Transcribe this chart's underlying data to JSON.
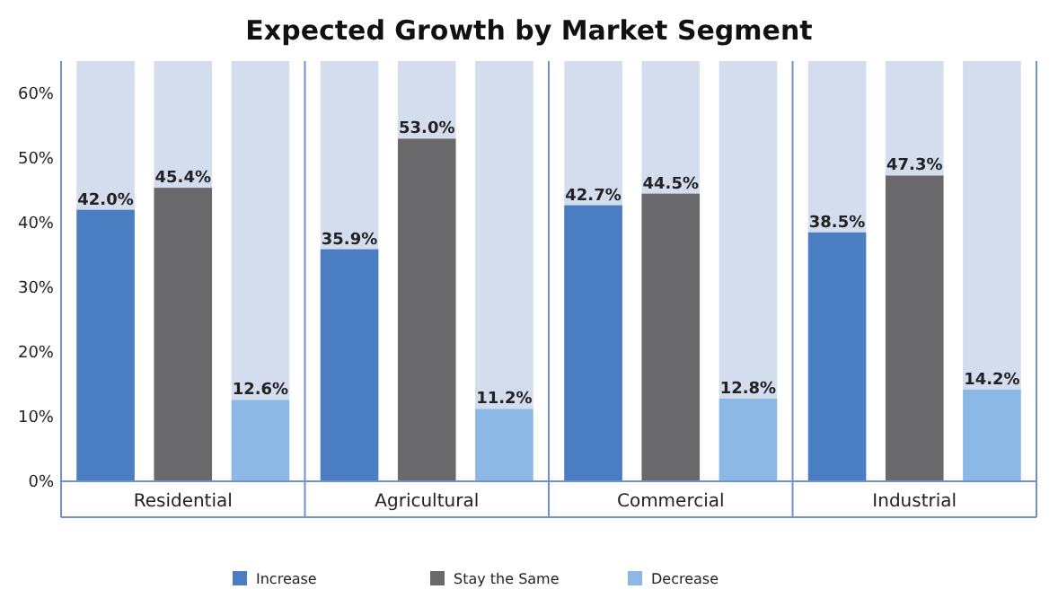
{
  "chart_data": {
    "type": "bar",
    "title": "Expected Growth by Market Segment",
    "categories": [
      "Residential",
      "Agricultural",
      "Commercial",
      "Industrial"
    ],
    "series": [
      {
        "name": "Increase",
        "color": "#4a7dc1",
        "values": [
          42.0,
          35.9,
          42.7,
          38.5
        ],
        "value_labels": [
          "42.0%",
          "35.9%",
          "42.7%",
          "38.5%"
        ]
      },
      {
        "name": "Stay the Same",
        "color": "#69696b",
        "values": [
          45.4,
          53.0,
          44.5,
          47.3
        ],
        "value_labels": [
          "45.4%",
          "53.0%",
          "44.5%",
          "47.3%"
        ]
      },
      {
        "name": "Decrease",
        "color": "#8bb8e4",
        "values": [
          12.6,
          11.2,
          12.8,
          14.2
        ],
        "value_labels": [
          "12.6%",
          "11.2%",
          "12.8%",
          "14.2%"
        ]
      }
    ],
    "ylim": [
      0,
      65
    ],
    "yticks": [
      {
        "value": 0,
        "label": "0%"
      },
      {
        "value": 10,
        "label": "10%"
      },
      {
        "value": 20,
        "label": "20%"
      },
      {
        "value": 30,
        "label": "30%"
      },
      {
        "value": 40,
        "label": "40%"
      },
      {
        "value": 50,
        "label": "50%"
      },
      {
        "value": 60,
        "label": "60%"
      }
    ],
    "legend": "bottom"
  }
}
